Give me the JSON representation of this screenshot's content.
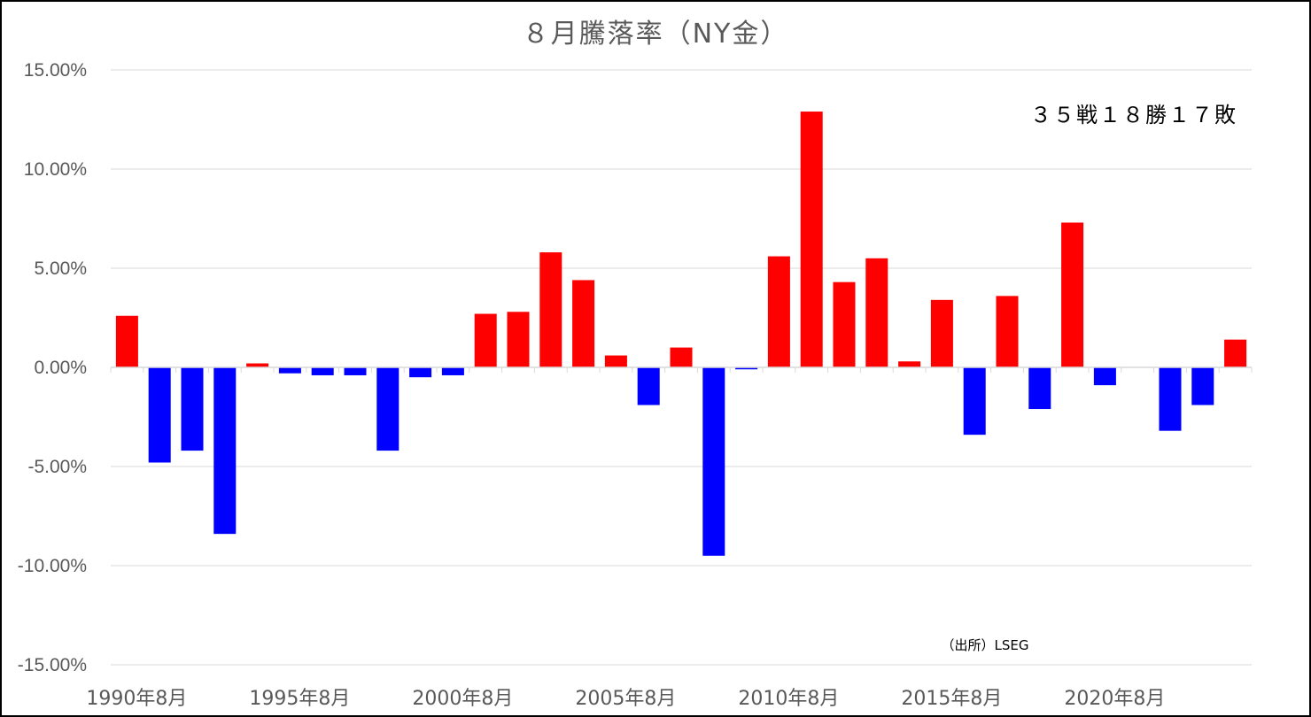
{
  "chart_data": {
    "type": "bar",
    "title": "８月騰落率（NY金）",
    "annotation": "３５戦１８勝１７敗",
    "source": "（出所）LSEG",
    "ylim": [
      -15,
      15
    ],
    "yticks": [
      15,
      10,
      5,
      0,
      -5,
      -10,
      -15
    ],
    "ytick_labels": [
      "15.00%",
      "10.00%",
      "5.00%",
      "0.00%",
      "-5.00%",
      "-10.00%",
      "-15.00%"
    ],
    "categories": [
      "1990",
      "1991",
      "1992",
      "1993",
      "1994",
      "1995",
      "1996",
      "1997",
      "1998",
      "1999",
      "2000",
      "2001",
      "2002",
      "2003",
      "2004",
      "2005",
      "2006",
      "2007",
      "2008",
      "2009",
      "2010",
      "2011",
      "2012",
      "2013",
      "2014",
      "2015",
      "2016",
      "2017",
      "2018",
      "2019",
      "2020",
      "2021",
      "2022",
      "2023",
      "2024"
    ],
    "xtick_labels": [
      {
        "index": 0,
        "label": "1990年8月"
      },
      {
        "index": 5,
        "label": "1995年8月"
      },
      {
        "index": 10,
        "label": "2000年8月"
      },
      {
        "index": 15,
        "label": "2005年8月"
      },
      {
        "index": 20,
        "label": "2010年8月"
      },
      {
        "index": 25,
        "label": "2015年8月"
      },
      {
        "index": 30,
        "label": "2020年8月"
      }
    ],
    "values": [
      2.6,
      -4.8,
      -4.2,
      -8.4,
      0.2,
      -0.3,
      -0.4,
      -0.4,
      -4.2,
      -0.5,
      -0.4,
      2.7,
      2.8,
      5.8,
      4.4,
      0.6,
      -1.9,
      1.0,
      -9.5,
      -0.1,
      5.6,
      12.9,
      4.3,
      5.5,
      0.3,
      3.4,
      -3.4,
      3.6,
      -2.1,
      7.3,
      -0.9,
      0.0,
      -3.2,
      -1.9,
      1.4
    ],
    "positive_color": "#ff0000",
    "negative_color": "#0000ff",
    "grid": true
  }
}
